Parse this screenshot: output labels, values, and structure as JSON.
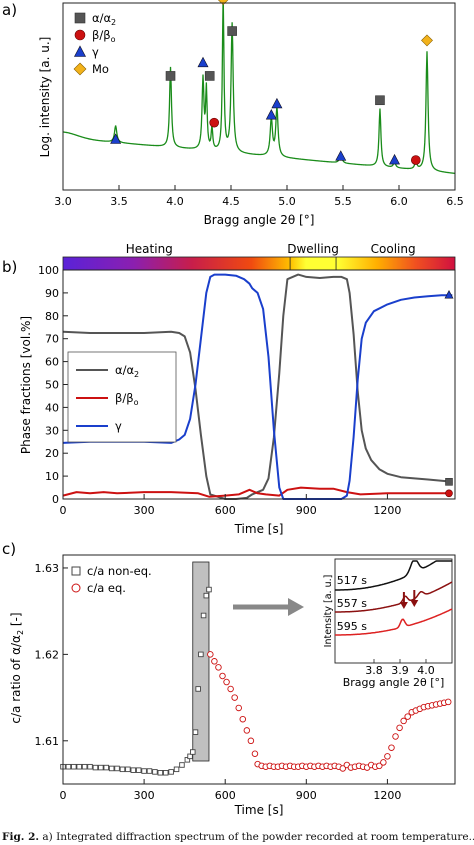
{
  "chart_data": [
    {
      "panel": "a)",
      "type": "line",
      "xlabel": "Bragg angle 2θ [°]",
      "ylabel": "Log. intensity [a. u.]",
      "xlim": [
        3.0,
        6.5
      ],
      "ylim": [
        0,
        1
      ],
      "xticks": [
        "3.0",
        "3.5",
        "4.0",
        "4.5",
        "5.0",
        "5.5",
        "6.0",
        "6.5"
      ],
      "line_color": "#1a8c1a",
      "legend": [
        {
          "label": "α/α",
          "sub": "2",
          "marker": "square",
          "color": "#555555"
        },
        {
          "label": "β/β",
          "sub": "o",
          "marker": "circle",
          "color": "#cc1111"
        },
        {
          "label": "γ",
          "sub": "",
          "marker": "triangle",
          "color": "#1a3fcc"
        },
        {
          "label": "Mo",
          "sub": "",
          "marker": "diamond",
          "color": "#f2b21b"
        }
      ],
      "peaks": [
        {
          "x": 3.47,
          "h": 0.09,
          "w": 0.012
        },
        {
          "x": 3.96,
          "h": 0.43,
          "w": 0.01
        },
        {
          "x": 4.25,
          "h": 0.38,
          "w": 0.01
        },
        {
          "x": 4.28,
          "h": 0.32,
          "w": 0.008
        },
        {
          "x": 4.33,
          "h": 0.12,
          "w": 0.008
        },
        {
          "x": 4.43,
          "h": 0.84,
          "w": 0.008
        },
        {
          "x": 4.51,
          "h": 0.69,
          "w": 0.011
        },
        {
          "x": 4.86,
          "h": 0.2,
          "w": 0.012
        },
        {
          "x": 4.91,
          "h": 0.26,
          "w": 0.012
        },
        {
          "x": 5.48,
          "h": 0.05,
          "w": 0.012
        },
        {
          "x": 5.83,
          "h": 0.31,
          "w": 0.01
        },
        {
          "x": 5.96,
          "h": 0.03,
          "w": 0.012
        },
        {
          "x": 6.15,
          "h": 0.04,
          "w": 0.012
        },
        {
          "x": 6.25,
          "h": 0.64,
          "w": 0.011
        }
      ],
      "markers": [
        {
          "x": 3.47,
          "y": 0.27,
          "m": "triangle"
        },
        {
          "x": 3.96,
          "y": 0.61,
          "m": "square"
        },
        {
          "x": 4.25,
          "y": 0.68,
          "m": "triangle"
        },
        {
          "x": 4.31,
          "y": 0.61,
          "m": "square"
        },
        {
          "x": 4.35,
          "y": 0.36,
          "m": "circle"
        },
        {
          "x": 4.43,
          "y": 1.02,
          "m": "diamond"
        },
        {
          "x": 4.51,
          "y": 0.85,
          "m": "square"
        },
        {
          "x": 4.86,
          "y": 0.4,
          "m": "triangle"
        },
        {
          "x": 4.91,
          "y": 0.46,
          "m": "triangle"
        },
        {
          "x": 5.48,
          "y": 0.18,
          "m": "triangle"
        },
        {
          "x": 5.83,
          "y": 0.48,
          "m": "square"
        },
        {
          "x": 5.96,
          "y": 0.16,
          "m": "triangle"
        },
        {
          "x": 6.15,
          "y": 0.16,
          "m": "circle"
        },
        {
          "x": 6.25,
          "y": 0.8,
          "m": "diamond"
        }
      ]
    },
    {
      "panel": "b)",
      "type": "line",
      "xlabel": "Time [s]",
      "ylabel": "Phase fractions [vol.%]",
      "xlim": [
        0,
        1450
      ],
      "ylim": [
        0,
        100
      ],
      "xticks": [
        "0",
        "300",
        "600",
        "900",
        "1200"
      ],
      "yticks": [
        "0",
        "10",
        "20",
        "30",
        "40",
        "50",
        "60",
        "70",
        "80",
        "90",
        "100"
      ],
      "stages": [
        {
          "label": "Heating",
          "from": 0,
          "to": 840
        },
        {
          "label": "Dwelling",
          "from": 840,
          "to": 1010
        },
        {
          "label": "Cooling",
          "from": 1010,
          "to": 1450
        }
      ],
      "series": [
        {
          "name": "α/α",
          "sub": "2",
          "color": "#555555",
          "x": [
            0,
            100,
            200,
            300,
            400,
            430,
            450,
            470,
            490,
            510,
            530,
            545,
            600,
            640,
            680,
            700,
            740,
            760,
            780,
            800,
            815,
            830,
            870,
            900,
            950,
            1000,
            1030,
            1050,
            1060,
            1075,
            1090,
            1105,
            1120,
            1140,
            1170,
            1200,
            1250,
            1300,
            1350,
            1400,
            1440
          ],
          "y": [
            73,
            72.5,
            72.5,
            72.5,
            73,
            72.5,
            71,
            64,
            48,
            28,
            10,
            2,
            0,
            0,
            0.5,
            2,
            4,
            9,
            27,
            55,
            80,
            96,
            98,
            97,
            96.5,
            97,
            97,
            96,
            90,
            72,
            47,
            30,
            22,
            17,
            13,
            11,
            9.5,
            9,
            8.5,
            8,
            7.5
          ]
        },
        {
          "name": "β/β",
          "sub": "o",
          "color": "#cc1111",
          "x": [
            0,
            50,
            100,
            150,
            200,
            300,
            400,
            500,
            540,
            600,
            650,
            690,
            720,
            750,
            800,
            830,
            880,
            950,
            1000,
            1050,
            1100,
            1200,
            1300,
            1440
          ],
          "y": [
            1.5,
            3,
            2.5,
            3,
            2.5,
            3,
            3,
            2.5,
            1,
            1.5,
            2,
            4,
            2.5,
            2,
            1.5,
            4,
            5,
            4.5,
            4.5,
            3,
            2,
            2.5,
            2.5,
            2.5
          ]
        },
        {
          "name": "γ",
          "sub": "",
          "color": "#1a3fcc",
          "x": [
            0,
            100,
            200,
            300,
            400,
            430,
            450,
            470,
            490,
            510,
            530,
            545,
            560,
            600,
            640,
            670,
            690,
            700,
            720,
            740,
            760,
            780,
            800,
            815,
            830,
            870,
            900,
            950,
            1000,
            1030,
            1050,
            1060,
            1075,
            1090,
            1105,
            1120,
            1150,
            1200,
            1250,
            1300,
            1350,
            1400,
            1440
          ],
          "y": [
            24.5,
            25,
            25,
            25,
            24.5,
            26,
            28,
            35,
            50,
            70,
            90,
            97,
            98,
            98,
            97.5,
            96,
            94,
            92,
            90,
            83,
            62,
            30,
            5,
            0,
            0,
            0,
            0,
            0,
            0,
            0,
            1.5,
            8,
            27,
            52,
            70,
            77,
            82,
            85,
            87,
            88,
            88.5,
            89,
            89
          ]
        }
      ],
      "end_markers": [
        {
          "y": 89,
          "m": "triangle",
          "color": "#1a3fcc"
        },
        {
          "y": 7.5,
          "m": "square",
          "color": "#555555"
        },
        {
          "y": 2.5,
          "m": "circle",
          "color": "#cc1111"
        }
      ]
    },
    {
      "panel": "c)",
      "type": "scatter",
      "xlabel": "Time [s]",
      "ylabel": "c/a ratio of α/α",
      "ylabel_sub": "2",
      "ylabel_unit": " [-]",
      "xlim": [
        0,
        1450
      ],
      "ylim": [
        1.605,
        1.6315
      ],
      "xticks": [
        "0",
        "300",
        "600",
        "900",
        "1200"
      ],
      "yticks": [
        "1.61",
        "1.62",
        "1.63"
      ],
      "highlight": [
        480,
        540
      ],
      "series": [
        {
          "name": "c/a non-eq.",
          "marker": "square",
          "color": "#444444",
          "x": [
            0,
            20,
            40,
            60,
            80,
            100,
            120,
            140,
            160,
            180,
            200,
            220,
            240,
            260,
            280,
            300,
            320,
            340,
            360,
            380,
            400,
            420,
            440,
            460,
            470,
            480,
            490,
            500,
            510,
            520,
            530,
            540
          ],
          "y": [
            1.607,
            1.607,
            1.607,
            1.607,
            1.607,
            1.607,
            1.6069,
            1.6069,
            1.6069,
            1.6068,
            1.6068,
            1.6067,
            1.6067,
            1.6066,
            1.6066,
            1.6065,
            1.6065,
            1.6064,
            1.6063,
            1.6063,
            1.6064,
            1.6067,
            1.6072,
            1.6078,
            1.6082,
            1.6087,
            1.611,
            1.616,
            1.62,
            1.6245,
            1.6268,
            1.6275
          ]
        },
        {
          "name": "c/a eq.",
          "marker": "circle",
          "color": "#cc1111",
          "x": [
            545,
            560,
            575,
            590,
            605,
            620,
            635,
            650,
            665,
            680,
            695,
            710,
            720,
            735,
            750,
            765,
            780,
            795,
            810,
            825,
            840,
            855,
            870,
            885,
            900,
            915,
            930,
            945,
            960,
            975,
            990,
            1005,
            1020,
            1035,
            1050,
            1065,
            1080,
            1095,
            1110,
            1125,
            1140,
            1155,
            1170,
            1185,
            1200,
            1215,
            1230,
            1245,
            1260,
            1275,
            1290,
            1305,
            1320,
            1335,
            1350,
            1365,
            1380,
            1395,
            1410,
            1425
          ],
          "y": [
            1.62,
            1.6192,
            1.6185,
            1.6175,
            1.6168,
            1.616,
            1.615,
            1.6138,
            1.6125,
            1.6112,
            1.61,
            1.6085,
            1.6073,
            1.6071,
            1.607,
            1.6071,
            1.607,
            1.607,
            1.6071,
            1.607,
            1.6071,
            1.607,
            1.607,
            1.6071,
            1.607,
            1.6071,
            1.607,
            1.6071,
            1.607,
            1.6071,
            1.607,
            1.6071,
            1.607,
            1.6068,
            1.6072,
            1.6069,
            1.607,
            1.6071,
            1.607,
            1.6069,
            1.6072,
            1.607,
            1.6071,
            1.6075,
            1.6082,
            1.6092,
            1.6105,
            1.6115,
            1.6123,
            1.6128,
            1.6133,
            1.6135,
            1.6137,
            1.6139,
            1.614,
            1.6141,
            1.6142,
            1.6143,
            1.6144,
            1.6145
          ]
        }
      ],
      "inset": {
        "xlabel": "Bragg angle 2θ [°]",
        "ylabel": "Intensity [a. u.]",
        "xlim": [
          3.65,
          4.1
        ],
        "xticks": [
          "3.8",
          "3.9",
          "4.0"
        ],
        "curves": [
          {
            "label": "517 s",
            "color": "#111111"
          },
          {
            "label": "557 s",
            "color": "#8b1010"
          },
          {
            "label": "595 s",
            "color": "#dd2222"
          }
        ]
      }
    }
  ],
  "caption": {
    "label": "Fig. 2.",
    "text": "a) Integrated diffraction spectrum of the powder recorded at room temperature..."
  }
}
